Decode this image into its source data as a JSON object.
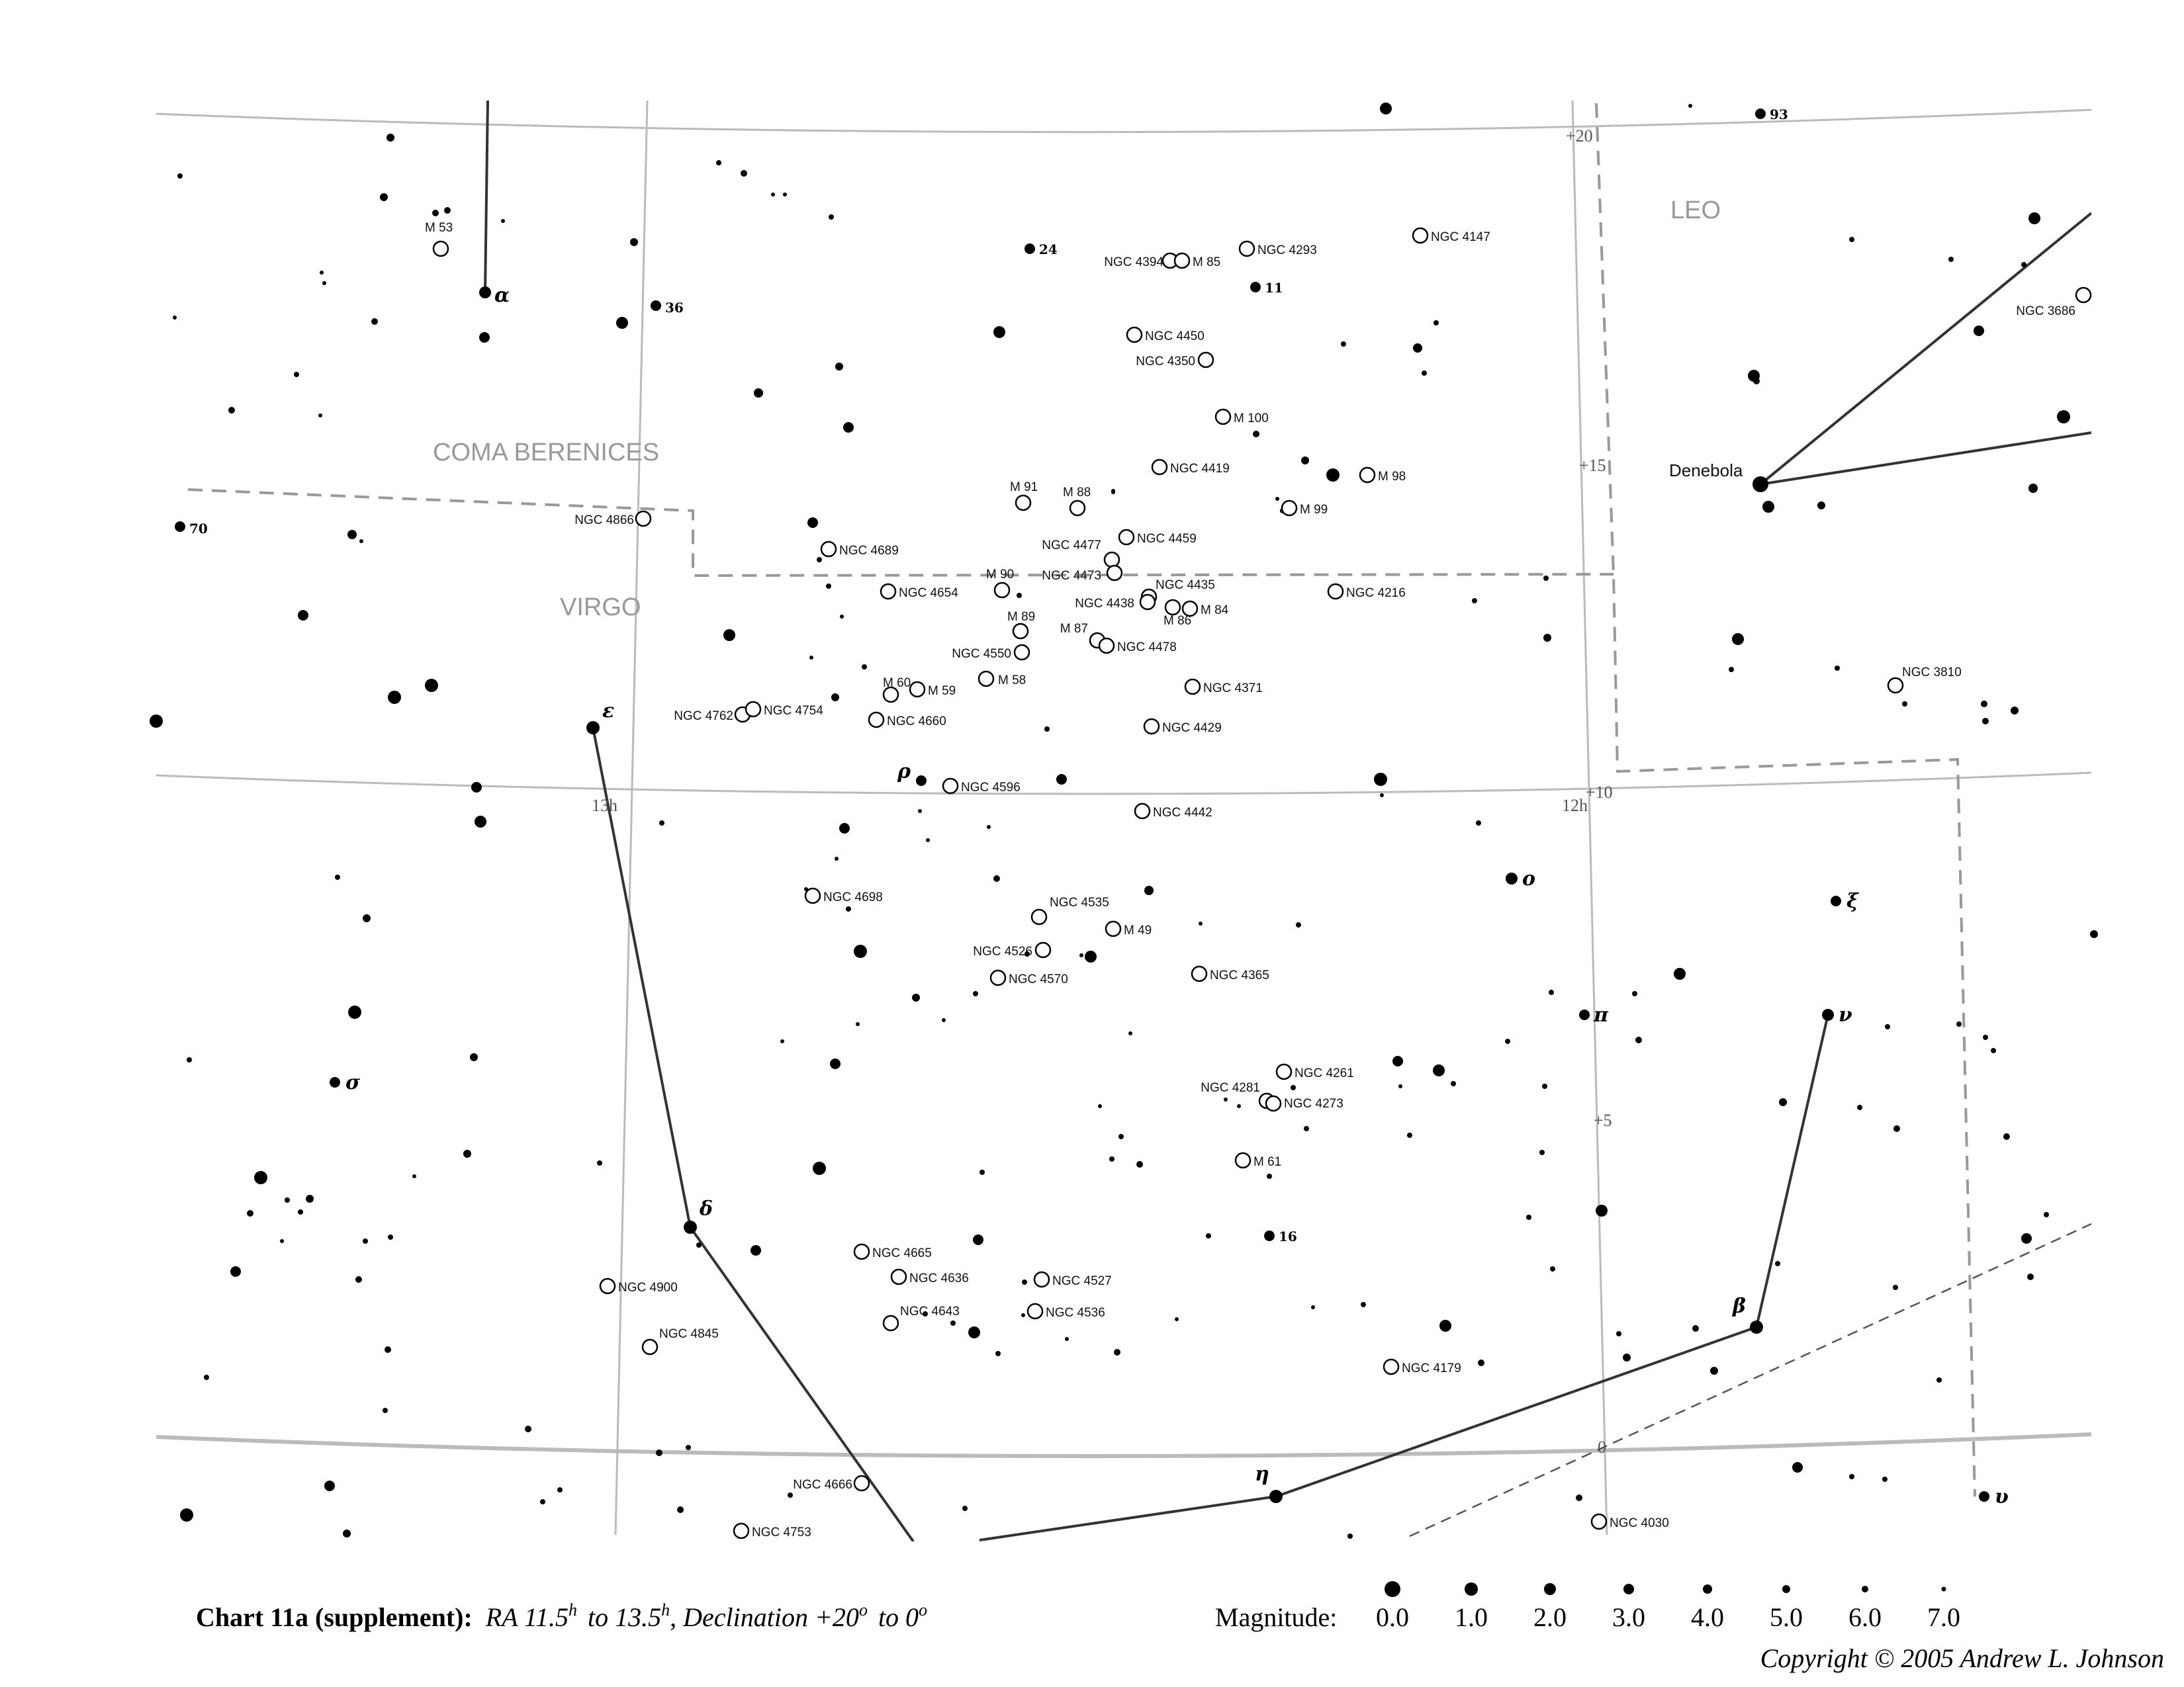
{
  "constellations": [
    {
      "name": "Coma Berenices",
      "display": "COMA BERENICES"
    },
    {
      "name": "Virgo",
      "display": "VIRGO"
    },
    {
      "name": "Leo",
      "display": "LEO"
    }
  ],
  "grid_labels": {
    "ra": [
      "13h",
      "12h"
    ],
    "dec": [
      "+20",
      "+15",
      "+10",
      "+5",
      "0"
    ]
  },
  "bright_stars": [
    {
      "label": "α",
      "type": "greek"
    },
    {
      "label": "36",
      "type": "flam"
    },
    {
      "label": "24",
      "type": "flam"
    },
    {
      "label": "11",
      "type": "flam"
    },
    {
      "label": "93",
      "type": "flam"
    },
    {
      "label": "70",
      "type": "flam"
    },
    {
      "label": "ε",
      "type": "greek"
    },
    {
      "label": "ρ",
      "type": "greek"
    },
    {
      "label": "ο",
      "type": "greek"
    },
    {
      "label": "ξ",
      "type": "greek"
    },
    {
      "label": "π",
      "type": "greek"
    },
    {
      "label": "ν",
      "type": "greek"
    },
    {
      "label": "σ",
      "type": "greek"
    },
    {
      "label": "δ",
      "type": "greek"
    },
    {
      "label": "16",
      "type": "flam"
    },
    {
      "label": "β",
      "type": "greek"
    },
    {
      "label": "η",
      "type": "greek"
    },
    {
      "label": "υ",
      "type": "greek"
    },
    {
      "label": "Denebola",
      "type": "name"
    }
  ],
  "objects": [
    "M 53",
    "NGC 4394",
    "M 85",
    "NGC 4293",
    "NGC 4147",
    "NGC 3686",
    "NGC 4450",
    "NGC 4350",
    "M 100",
    "NGC 4419",
    "M 98",
    "M 91",
    "M 88",
    "M 99",
    "NGC 4866",
    "NGC 4689",
    "NGC 4477",
    "NGC 4459",
    "M 90",
    "NGC 4473",
    "NGC 4435",
    "NGC 4654",
    "NGC 4438",
    "M 84",
    "M 86",
    "NGC 4216",
    "M 89",
    "M 87",
    "NGC 4550",
    "NGC 4478",
    "M 58",
    "M 60",
    "M 59",
    "NGC 4371",
    "NGC 4762",
    "NGC 4754",
    "NGC 4660",
    "NGC 4429",
    "NGC 3810",
    "NGC 4596",
    "NGC 4442",
    "NGC 4698",
    "NGC 4535",
    "M 49",
    "NGC 4526",
    "NGC 4570",
    "NGC 4365",
    "NGC 4261",
    "NGC 4281",
    "NGC 4273",
    "M 61",
    "NGC 4665",
    "NGC 4636",
    "NGC 4527",
    "NGC 4900",
    "NGC 4643",
    "NGC 4536",
    "NGC 4845",
    "NGC 4179",
    "NGC 4666",
    "NGC 4753",
    "NGC 4030"
  ],
  "caption": {
    "bold": "Chart 11a (supplement):",
    "ra_text": "RA 11.5",
    "ra_to": "to 13.5",
    "dec_text": "Declination  +20",
    "dec_to": "to 0"
  },
  "magnitude_legend": {
    "title": "Magnitude:",
    "values": [
      "0.0",
      "1.0",
      "2.0",
      "3.0",
      "4.0",
      "5.0",
      "6.0",
      "7.0"
    ]
  },
  "copyright": "Copyright © 2005 Andrew L. Johnson"
}
